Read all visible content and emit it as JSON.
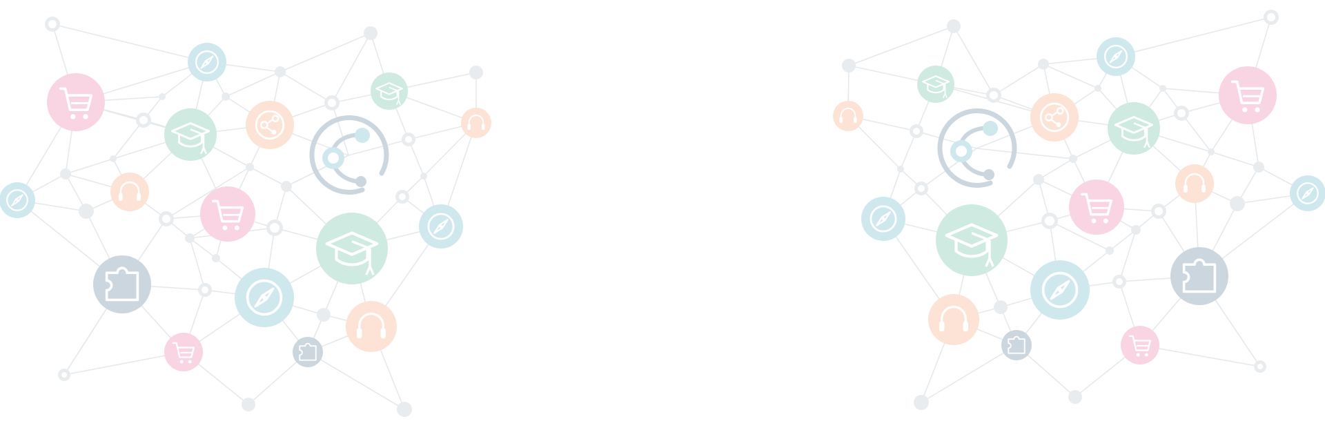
{
  "colors": {
    "background": "#ffffff",
    "line": "#e6e9ec",
    "small_dot": "#e9ecef",
    "ring": "#e9ecef",
    "pink": "#f9d5e4",
    "green": "#cfeae1",
    "blue": "#cfe8ee",
    "peach": "#fde3d6",
    "slate": "#ccd6de",
    "logo_stroke": "#ccd6de",
    "logo_accent": "#cfe8ee"
  },
  "icon_names": [
    "cart-icon",
    "graduation-cap-icon",
    "compass-icon",
    "headphones-icon",
    "puzzle-icon",
    "share-icon",
    "network-logo-icon"
  ]
}
